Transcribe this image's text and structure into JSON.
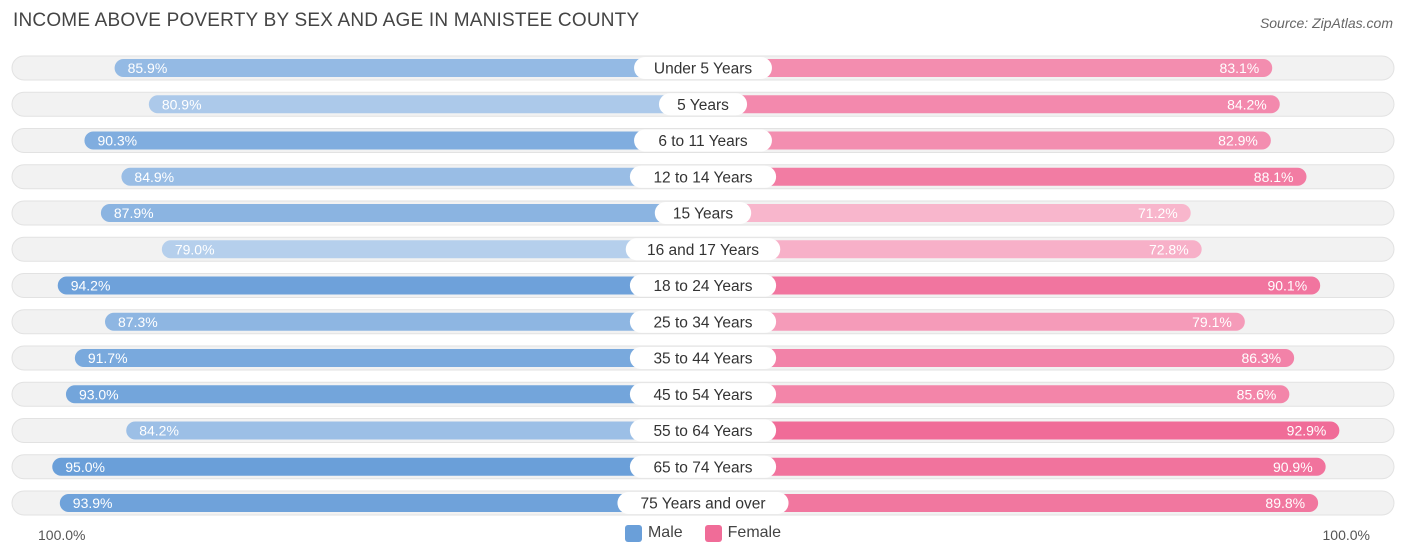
{
  "header": {
    "title": "INCOME ABOVE POVERTY BY SEX AND AGE IN MANISTEE COUNTY",
    "source": "Source: ZipAtlas.com"
  },
  "axis": {
    "left_label": "100.0%",
    "right_label": "100.0%"
  },
  "legend": {
    "male_label": "Male",
    "female_label": "Female",
    "male_color": "#6a9fd9",
    "female_color": "#f06c98"
  },
  "chart_data": {
    "type": "bar",
    "orientation": "horizontal-diverging",
    "title": "INCOME ABOVE POVERTY BY SEX AND AGE IN MANISTEE COUNTY",
    "xlim": [
      0,
      100
    ],
    "unit": "%",
    "categories": [
      "Under 5 Years",
      "5 Years",
      "6 to 11 Years",
      "12 to 14 Years",
      "15 Years",
      "16 and 17 Years",
      "18 to 24 Years",
      "25 to 34 Years",
      "35 to 44 Years",
      "45 to 54 Years",
      "55 to 64 Years",
      "65 to 74 Years",
      "75 Years and over"
    ],
    "series": [
      {
        "name": "Male",
        "values": [
          85.9,
          80.9,
          90.3,
          84.9,
          87.9,
          79.0,
          94.2,
          87.3,
          91.7,
          93.0,
          84.2,
          95.0,
          93.9
        ],
        "labels": [
          "85.9%",
          "80.9%",
          "90.3%",
          "84.9%",
          "87.9%",
          "79.0%",
          "94.2%",
          "87.3%",
          "91.7%",
          "93.0%",
          "84.2%",
          "95.0%",
          "93.9%"
        ]
      },
      {
        "name": "Female",
        "values": [
          83.1,
          84.2,
          82.9,
          88.1,
          71.2,
          72.8,
          90.1,
          79.1,
          86.3,
          85.6,
          92.9,
          90.9,
          89.8
        ],
        "labels": [
          "83.1%",
          "84.2%",
          "82.9%",
          "88.1%",
          "71.2%",
          "72.8%",
          "90.1%",
          "79.1%",
          "86.3%",
          "85.6%",
          "92.9%",
          "90.9%",
          "89.8%"
        ]
      }
    ]
  }
}
